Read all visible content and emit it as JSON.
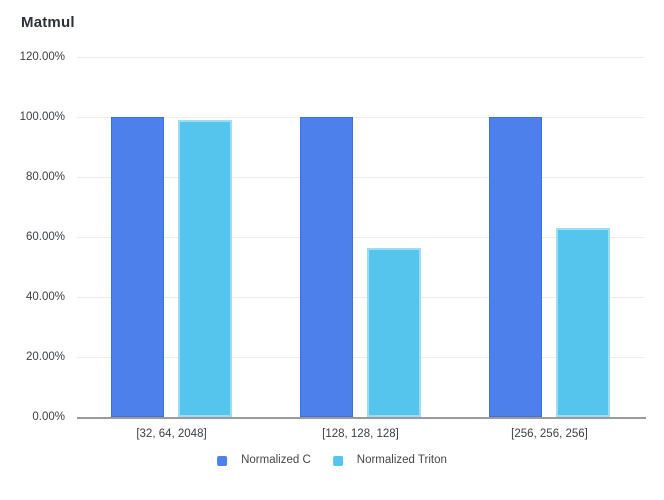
{
  "chart_data": {
    "type": "bar",
    "title": "Matmul",
    "xlabel": "",
    "ylabel": "",
    "categories": [
      "[32, 64, 2048]",
      "[128, 128, 128]",
      "[256, 256, 256]"
    ],
    "series": [
      {
        "name": "Normalized C",
        "values": [
          100,
          100,
          100
        ],
        "fill": "#4E80EB",
        "border": "#3E6FDD"
      },
      {
        "name": "Normalized Triton",
        "values": [
          99,
          56.5,
          63
        ],
        "fill": "#55C5EE",
        "border": "#9ADDF4"
      }
    ],
    "ylim": [
      0,
      120
    ],
    "yticks": [
      {
        "v": 120,
        "label": "120.00%"
      },
      {
        "v": 100,
        "label": "100.00%"
      },
      {
        "v": 80,
        "label": "80.00%"
      },
      {
        "v": 60,
        "label": "60.00%"
      },
      {
        "v": 40,
        "label": "40.00%"
      },
      {
        "v": 20,
        "label": "20.00%"
      },
      {
        "v": 0,
        "label": "0.00%"
      }
    ],
    "grid": true,
    "legend_position": "bottom"
  },
  "colors": {
    "grid": "#ececec",
    "axis": "#9a9a9a",
    "tick_text": "#3c4043",
    "legend_text": "#464646",
    "title_text": "#2d3238",
    "background": "#ffffff"
  }
}
